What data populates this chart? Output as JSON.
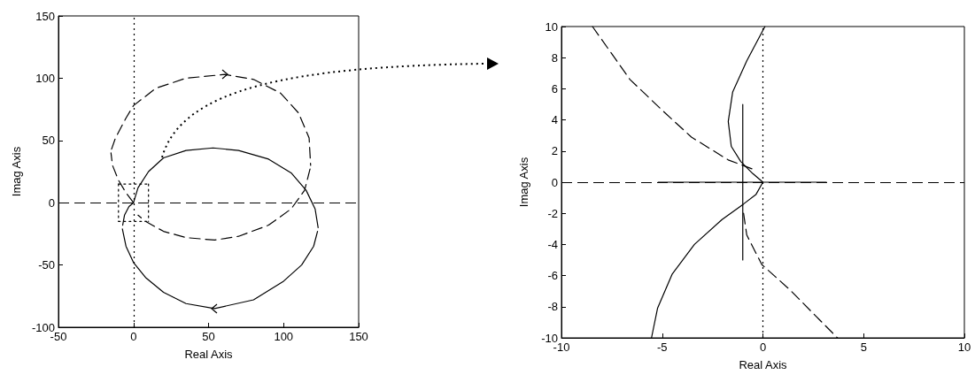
{
  "chart_data": [
    {
      "type": "line",
      "xlabel": "Real Axis",
      "ylabel": "Imag Axis",
      "xlim": [
        -50,
        150
      ],
      "ylim": [
        -100,
        150
      ],
      "xticks": [
        -50,
        0,
        50,
        100,
        150
      ],
      "yticks": [
        -100,
        -50,
        0,
        50,
        100,
        150
      ],
      "grid": false,
      "marker": "none",
      "ref_lines": [
        {
          "axis": "x",
          "value": 0,
          "line_style": "dotted",
          "color": "#000000"
        },
        {
          "axis": "y",
          "value": 0,
          "line_style": "dashed",
          "color": "#000000"
        }
      ],
      "series": [
        {
          "color": "#000000",
          "line_style": "solid",
          "x": [
            -7.2,
            -6,
            -3,
            0,
            3,
            10,
            20,
            35,
            53,
            70,
            90,
            105,
            115,
            121,
            123
          ],
          "values": [
            -18,
            -10,
            -3,
            0,
            12,
            25,
            36,
            42,
            44,
            42,
            35,
            24,
            10,
            -5,
            -20
          ]
        },
        {
          "color": "#000000",
          "line_style": "solid",
          "x": [
            122.6,
            120,
            112,
            100,
            80,
            54,
            35,
            20,
            8,
            0,
            -5,
            -7.4
          ],
          "values": [
            -23,
            -35,
            -50,
            -63,
            -78,
            -85,
            -81,
            -72,
            -60,
            -48,
            -35,
            -21
          ]
        },
        {
          "color": "#000000",
          "line_style": "dashed",
          "x": [
            0,
            -5,
            -10,
            -14,
            -15
          ],
          "values": [
            0,
            8,
            18,
            30,
            40
          ]
        },
        {
          "color": "#000000",
          "line_style": "dashed",
          "x": [
            -14.6,
            -12,
            -5,
            0,
            15,
            35,
            61,
            80,
            98,
            110,
            117,
            118
          ],
          "values": [
            43,
            52,
            68,
            78,
            92,
            100,
            103,
            99,
            88,
            72,
            52,
            30
          ]
        },
        {
          "color": "#000000",
          "line_style": "dashed",
          "x": [
            117.6,
            114,
            105,
            90,
            70,
            54,
            35,
            20,
            8,
            3
          ],
          "values": [
            27,
            10,
            -5,
            -18,
            -27,
            -30,
            -28,
            -23,
            -15,
            -10
          ]
        },
        {
          "color": "#000000",
          "line_style": "dotted",
          "x": [
            -10,
            10
          ],
          "values": [
            15,
            15
          ]
        },
        {
          "color": "#000000",
          "line_style": "dotted",
          "x": [
            -10,
            10
          ],
          "values": [
            -15,
            -15
          ]
        },
        {
          "color": "#000000",
          "line_style": "dotted",
          "x": [
            -10,
            -10
          ],
          "values": [
            15,
            -15
          ]
        },
        {
          "color": "#000000",
          "line_style": "dotted",
          "x": [
            10,
            10
          ],
          "values": [
            15,
            -15
          ]
        }
      ]
    },
    {
      "type": "line",
      "xlabel": "Real Axis",
      "ylabel": "Imag Axis",
      "xlim": [
        -10,
        10
      ],
      "ylim": [
        -10,
        10
      ],
      "xticks": [
        -10,
        -5,
        0,
        5,
        10
      ],
      "yticks": [
        -10,
        -8,
        -6,
        -4,
        -2,
        0,
        2,
        4,
        6,
        8,
        10
      ],
      "grid": false,
      "marker": "none",
      "ref_lines": [
        {
          "axis": "x",
          "value": 0,
          "line_style": "dotted",
          "color": "#000000"
        },
        {
          "axis": "y",
          "value": 0,
          "line_style": "dashed",
          "color": "#000000"
        }
      ],
      "series": [
        {
          "color": "#000000",
          "line_style": "dashed",
          "x": [
            -8.46,
            -6.6,
            -4.9,
            -3.55,
            -1.72,
            -0.5
          ],
          "values": [
            10,
            6.6,
            4.5,
            2.9,
            1.43,
            0.84
          ]
        },
        {
          "color": "#000000",
          "line_style": "dashed",
          "x": [
            -0.96,
            -0.8,
            -0.05,
            1.33,
            2.55,
            3.7
          ],
          "values": [
            -2,
            -3.4,
            -5.3,
            -6.9,
            -8.5,
            -10
          ]
        },
        {
          "color": "#000000",
          "line_style": "solid",
          "x": [
            0.1,
            -0.8,
            -1.5,
            -1.72,
            -1.57,
            -1.1,
            -0.5,
            0,
            -0.35,
            -0.96,
            -2.03,
            -3.4,
            -4.5,
            -5.23,
            -5.53
          ],
          "values": [
            10,
            7.8,
            5.8,
            3.9,
            2.3,
            1.33,
            0.55,
            0,
            -0.8,
            -1.4,
            -2.4,
            -4,
            -5.9,
            -8.1,
            -10
          ]
        },
        {
          "color": "#000000",
          "line_style": "solid",
          "x": [
            -5.2,
            3.15
          ],
          "values": [
            0,
            0
          ]
        },
        {
          "color": "#000000",
          "line_style": "solid",
          "x": [
            -1,
            -1
          ],
          "values": [
            5,
            -5
          ]
        }
      ]
    }
  ]
}
